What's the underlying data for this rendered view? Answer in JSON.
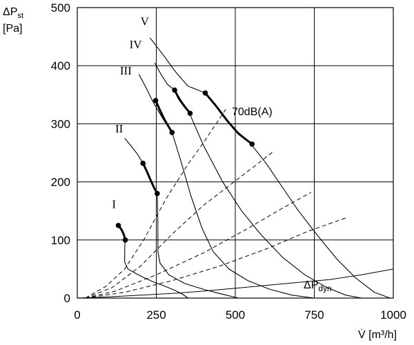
{
  "chart_data": {
    "type": "line",
    "title": "",
    "ylabel_line1": "ΔP",
    "ylabel_sub": "st",
    "ylabel_line2": "[Pa]",
    "xlabel": "V̇ [m³/h]",
    "xlim": [
      0,
      1000
    ],
    "ylim": [
      0,
      500
    ],
    "grid": true,
    "x_ticks": [
      0,
      250,
      500,
      750,
      1000
    ],
    "y_ticks": [
      0,
      100,
      200,
      300,
      400,
      500
    ],
    "series": [
      {
        "name": "I",
        "points": [
          [
            135,
            124
          ],
          [
            143,
            116
          ],
          [
            148,
            108
          ],
          [
            151,
            100
          ],
          [
            150,
            80
          ],
          [
            150,
            62
          ],
          [
            160,
            50
          ],
          [
            200,
            38
          ],
          [
            240,
            28
          ],
          [
            280,
            20
          ],
          [
            310,
            13
          ],
          [
            335,
            6
          ],
          [
            350,
            0
          ]
        ],
        "bold": [
          [
            130,
            125
          ],
          [
            141,
            117
          ],
          [
            148,
            108
          ],
          [
            152,
            100
          ]
        ],
        "markers": [
          [
            130,
            125
          ],
          [
            152,
            100
          ]
        ]
      },
      {
        "name": "II",
        "points": [
          [
            150,
            275
          ],
          [
            170,
            262
          ],
          [
            190,
            248
          ],
          [
            208,
            232
          ],
          [
            225,
            212
          ],
          [
            240,
            195
          ],
          [
            253,
            180
          ],
          [
            255,
            130
          ],
          [
            255,
            80
          ],
          [
            262,
            60
          ],
          [
            290,
            40
          ],
          [
            340,
            25
          ],
          [
            400,
            15
          ],
          [
            450,
            8
          ],
          [
            510,
            0
          ]
        ],
        "bold": [
          [
            208,
            232
          ],
          [
            220,
            218
          ],
          [
            232,
            203
          ],
          [
            243,
            190
          ],
          [
            253,
            180
          ]
        ],
        "markers": [
          [
            208,
            232
          ],
          [
            253,
            180
          ]
        ]
      },
      {
        "name": "III",
        "points": [
          [
            195,
            385
          ],
          [
            215,
            365
          ],
          [
            235,
            343
          ],
          [
            250,
            328
          ],
          [
            275,
            305
          ],
          [
            300,
            285
          ],
          [
            330,
            232
          ],
          [
            360,
            175
          ],
          [
            395,
            120
          ],
          [
            430,
            80
          ],
          [
            480,
            50
          ],
          [
            540,
            30
          ],
          [
            610,
            15
          ],
          [
            680,
            5
          ],
          [
            750,
            0
          ]
        ],
        "bold": [
          [
            248,
            340
          ],
          [
            262,
            323
          ],
          [
            277,
            306
          ],
          [
            300,
            285
          ]
        ],
        "markers": [
          [
            248,
            340
          ],
          [
            300,
            285
          ]
        ]
      },
      {
        "name": "IV",
        "points": [
          [
            245,
            405
          ],
          [
            265,
            385
          ],
          [
            285,
            368
          ],
          [
            308,
            358
          ],
          [
            335,
            335
          ],
          [
            355,
            318
          ],
          [
            400,
            262
          ],
          [
            460,
            200
          ],
          [
            520,
            150
          ],
          [
            580,
            110
          ],
          [
            650,
            70
          ],
          [
            720,
            40
          ],
          [
            790,
            18
          ],
          [
            850,
            5
          ],
          [
            900,
            0
          ]
        ],
        "bold": [
          [
            308,
            358
          ],
          [
            322,
            343
          ],
          [
            338,
            331
          ],
          [
            357,
            318
          ]
        ],
        "markers": [
          [
            308,
            358
          ],
          [
            357,
            318
          ]
        ]
      },
      {
        "name": "V",
        "points": [
          [
            230,
            448
          ],
          [
            270,
            420
          ],
          [
            310,
            390
          ],
          [
            350,
            365
          ],
          [
            405,
            353
          ],
          [
            460,
            315
          ],
          [
            500,
            290
          ],
          [
            550,
            265
          ],
          [
            600,
            230
          ],
          [
            650,
            190
          ],
          [
            700,
            150
          ],
          [
            760,
            108
          ],
          [
            820,
            68
          ],
          [
            880,
            35
          ],
          [
            940,
            10
          ],
          [
            990,
            0
          ]
        ],
        "bold": [
          [
            405,
            353
          ],
          [
            440,
            330
          ],
          [
            475,
            305
          ],
          [
            510,
            283
          ],
          [
            553,
            265
          ]
        ],
        "markers": [
          [
            405,
            353
          ],
          [
            553,
            265
          ]
        ]
      }
    ],
    "dashed_lines": [
      [
        [
          25,
          0
        ],
        [
          90,
          20
        ],
        [
          150,
          50
        ],
        [
          210,
          100
        ],
        [
          280,
          170
        ],
        [
          350,
          230
        ],
        [
          400,
          268
        ],
        [
          470,
          325
        ]
      ],
      [
        [
          25,
          0
        ],
        [
          110,
          18
        ],
        [
          200,
          55
        ],
        [
          300,
          110
        ],
        [
          400,
          160
        ],
        [
          520,
          210
        ],
        [
          620,
          252
        ]
      ],
      [
        [
          25,
          0
        ],
        [
          120,
          12
        ],
        [
          250,
          40
        ],
        [
          400,
          78
        ],
        [
          540,
          120
        ],
        [
          650,
          155
        ],
        [
          740,
          182
        ]
      ],
      [
        [
          25,
          0
        ],
        [
          150,
          10
        ],
        [
          300,
          30
        ],
        [
          450,
          55
        ],
        [
          600,
          85
        ],
        [
          730,
          115
        ],
        [
          850,
          138
        ]
      ]
    ],
    "dyn_curve": [
      [
        0,
        0
      ],
      [
        100,
        2
      ],
      [
        200,
        5
      ],
      [
        300,
        8
      ],
      [
        400,
        12
      ],
      [
        500,
        17
      ],
      [
        600,
        22
      ],
      [
        700,
        27
      ],
      [
        800,
        32
      ],
      [
        900,
        40
      ],
      [
        1000,
        50
      ]
    ],
    "annotations": [
      {
        "text": "70dB(A)",
        "x": 490,
        "y": 318
      },
      {
        "text": "ΔP",
        "sub": "dyn",
        "x": 725,
        "y": 20
      }
    ],
    "label_positions": {
      "I": [
        110,
        155
      ],
      "II": [
        120,
        285
      ],
      "III": [
        135,
        385
      ],
      "IV": [
        165,
        430
      ],
      "V": [
        200,
        470
      ]
    }
  }
}
